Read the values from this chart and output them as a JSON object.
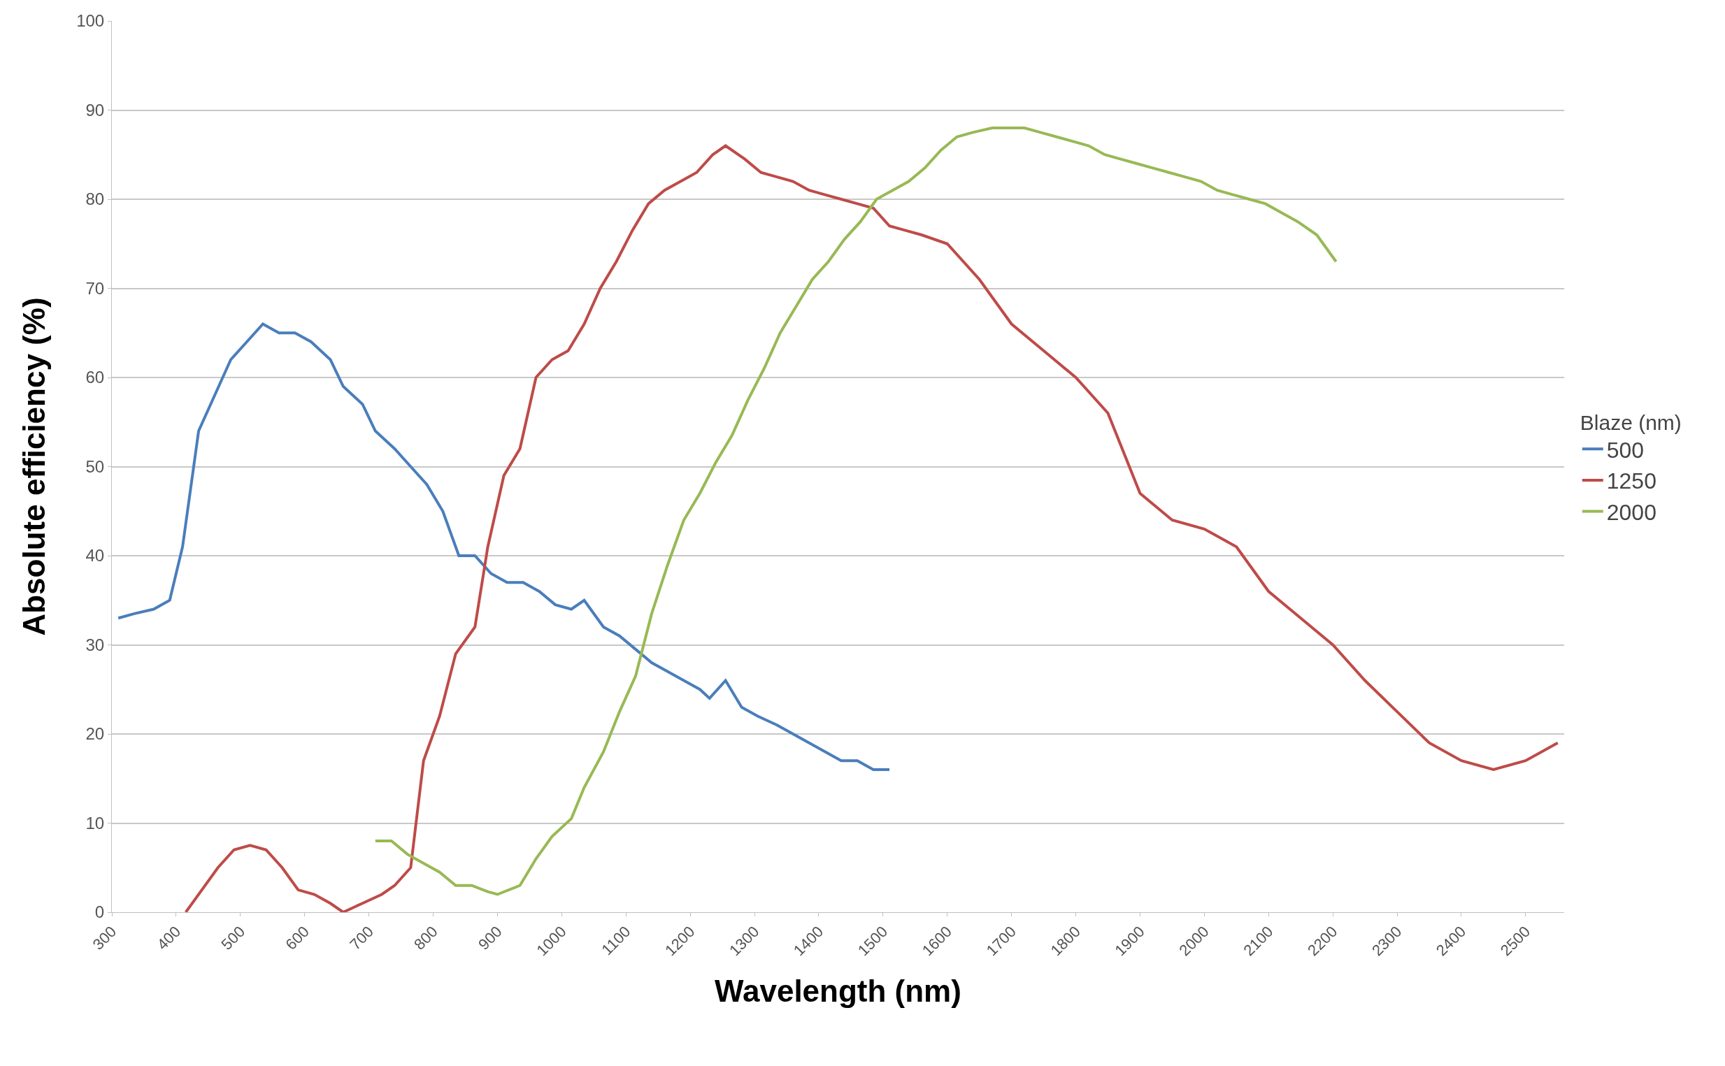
{
  "chart_data": {
    "type": "line",
    "xlabel": "Wavelength (nm)",
    "ylabel": "Absolute efficiency (%)",
    "legend_title": "Blaze (nm)",
    "xlim": [
      300,
      2560
    ],
    "ylim": [
      0,
      100
    ],
    "xticks": [
      300,
      400,
      500,
      600,
      700,
      800,
      900,
      1000,
      1100,
      1200,
      1300,
      1400,
      1500,
      1600,
      1700,
      1800,
      1900,
      2000,
      2100,
      2200,
      2300,
      2400,
      2500
    ],
    "yticks": [
      0,
      10,
      20,
      30,
      40,
      50,
      60,
      70,
      80,
      90,
      100
    ],
    "grid": "y",
    "legend": "right",
    "marker": "none",
    "line_style": "solid",
    "series": [
      {
        "name": "500",
        "color": "#4a7ebb",
        "x": [
          310,
          335,
          365,
          390,
          410,
          435,
          460,
          485,
          510,
          535,
          560,
          585,
          610,
          640,
          660,
          690,
          710,
          740,
          765,
          790,
          815,
          840,
          865,
          890,
          915,
          940,
          965,
          990,
          1015,
          1035,
          1065,
          1090,
          1115,
          1140,
          1165,
          1190,
          1215,
          1230,
          1255,
          1280,
          1305,
          1335,
          1360,
          1385,
          1410,
          1435,
          1460,
          1485,
          1510
        ],
        "values": [
          33,
          33.5,
          34,
          35,
          41,
          54,
          58,
          62,
          64,
          66,
          65,
          65,
          64,
          62,
          59,
          57,
          54,
          52,
          50,
          48,
          45,
          40,
          40,
          38,
          37,
          37,
          36,
          34.5,
          34,
          35,
          32,
          31,
          29.5,
          28,
          27,
          26,
          25,
          24,
          26,
          23,
          22,
          21,
          20,
          19,
          18,
          17,
          17,
          16,
          16
        ]
      },
      {
        "name": "1250",
        "color": "#be4b48",
        "x": [
          415,
          440,
          465,
          490,
          515,
          540,
          565,
          590,
          615,
          640,
          660,
          690,
          720,
          740,
          765,
          785,
          810,
          835,
          865,
          885,
          910,
          935,
          960,
          985,
          1010,
          1035,
          1060,
          1085,
          1110,
          1135,
          1160,
          1185,
          1210,
          1235,
          1255,
          1285,
          1310,
          1335,
          1360,
          1385,
          1410,
          1435,
          1460,
          1485,
          1510,
          1535,
          1560,
          1600,
          1650,
          1700,
          1750,
          1800,
          1850,
          1900,
          1950,
          2000,
          2050,
          2100,
          2150,
          2200,
          2250,
          2300,
          2350,
          2400,
          2450,
          2500,
          2550
        ],
        "values": [
          0,
          2.5,
          5,
          7,
          7.5,
          7,
          5,
          2.5,
          2,
          1,
          0,
          1,
          2,
          3,
          5,
          17,
          22,
          29,
          32,
          41,
          49,
          52,
          60,
          62,
          63,
          66,
          70,
          73,
          76.5,
          79.5,
          81,
          82,
          83,
          85,
          86,
          84.5,
          83,
          82.5,
          82,
          81,
          80.5,
          80,
          79.5,
          79,
          77,
          76.5,
          76,
          75,
          71,
          66,
          63,
          60,
          56,
          47,
          44,
          43,
          41,
          36,
          33,
          30,
          26,
          22.5,
          19,
          17,
          16,
          17,
          19
        ]
      },
      {
        "name": "2000",
        "color": "#98b954",
        "x": [
          710,
          735,
          760,
          785,
          810,
          835,
          860,
          885,
          900,
          935,
          960,
          985,
          1015,
          1035,
          1065,
          1090,
          1115,
          1140,
          1165,
          1190,
          1215,
          1240,
          1265,
          1290,
          1315,
          1340,
          1365,
          1390,
          1415,
          1440,
          1465,
          1490,
          1515,
          1540,
          1565,
          1590,
          1615,
          1640,
          1670,
          1695,
          1720,
          1745,
          1770,
          1795,
          1820,
          1845,
          1870,
          1895,
          1920,
          1945,
          1970,
          1995,
          2020,
          2045,
          2070,
          2095,
          2120,
          2145,
          2175,
          2205
        ],
        "values": [
          8,
          8,
          6.5,
          5.5,
          4.5,
          3,
          3,
          2.3,
          2,
          3,
          6,
          8.5,
          10.5,
          14,
          18,
          22.5,
          26.5,
          33.5,
          39,
          44,
          47,
          50.5,
          53.5,
          57.5,
          61,
          65,
          68,
          71,
          73,
          75.5,
          77.5,
          80,
          81,
          82,
          83.5,
          85.5,
          87,
          87.5,
          88,
          88,
          88,
          87.5,
          87,
          86.5,
          86,
          85,
          84.5,
          84,
          83.5,
          83,
          82.5,
          82,
          81,
          80.5,
          80,
          79.5,
          78.5,
          77.5,
          76,
          73
        ]
      }
    ]
  }
}
